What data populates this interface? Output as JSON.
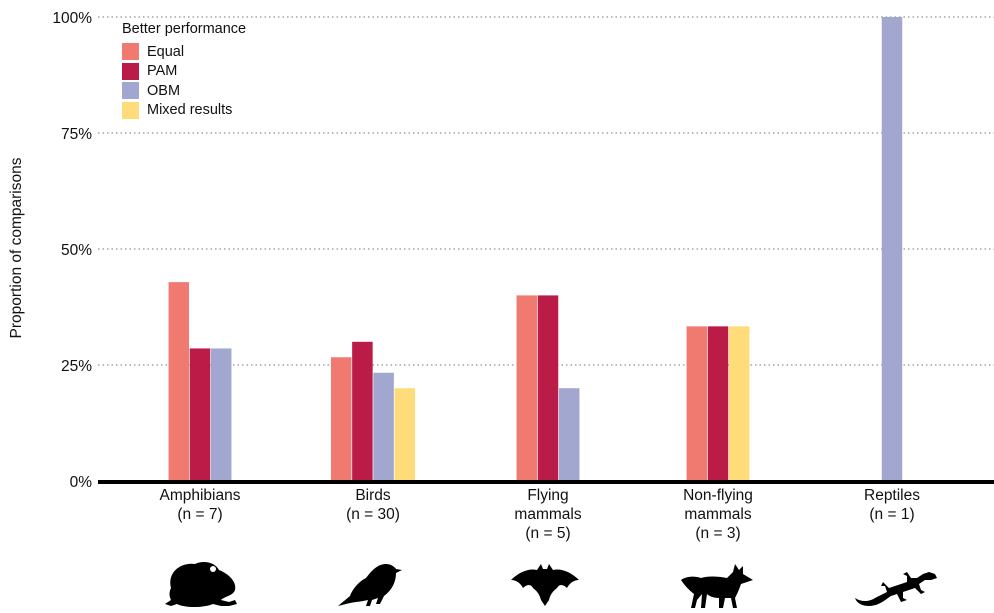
{
  "chart_data": {
    "type": "bar",
    "ylabel": "Proportion of comparisons",
    "ylim": [
      0,
      1
    ],
    "yticks": [
      {
        "value": 0,
        "label": "0%"
      },
      {
        "value": 0.25,
        "label": "25%"
      },
      {
        "value": 0.5,
        "label": "50%"
      },
      {
        "value": 0.75,
        "label": "75%"
      },
      {
        "value": 1,
        "label": "100%"
      }
    ],
    "grid": "horizontal dotted",
    "legend": {
      "title": "Better performance",
      "placement": "top-left"
    },
    "categories": [
      {
        "lines": [
          "Amphibians",
          "(n = 7)"
        ],
        "silhouette": "frog-icon"
      },
      {
        "lines": [
          "Birds",
          "(n = 30)"
        ],
        "silhouette": "bird-icon"
      },
      {
        "lines": [
          "Flying",
          "mammals",
          "(n = 5)"
        ],
        "silhouette": "bat-icon"
      },
      {
        "lines": [
          "Non-flying",
          "mammals",
          "(n = 3)"
        ],
        "silhouette": "fox-icon"
      },
      {
        "lines": [
          "Reptiles",
          "(n = 1)"
        ],
        "silhouette": "gecko-icon"
      }
    ],
    "series": [
      {
        "name": "Equal",
        "color": "#F07A70",
        "values": [
          0.4286,
          0.2667,
          0.4,
          0.3333,
          0
        ]
      },
      {
        "name": "PAM",
        "color": "#BA1B47",
        "values": [
          0.2857,
          0.3,
          0.4,
          0.3333,
          0
        ]
      },
      {
        "name": "OBM",
        "color": "#A1A7CF",
        "values": [
          0.2857,
          0.2333,
          0.2,
          0,
          1
        ]
      },
      {
        "name": "Mixed results",
        "color": "#FEDC7A",
        "values": [
          0,
          0.2,
          0,
          0.3333,
          0
        ]
      }
    ]
  }
}
